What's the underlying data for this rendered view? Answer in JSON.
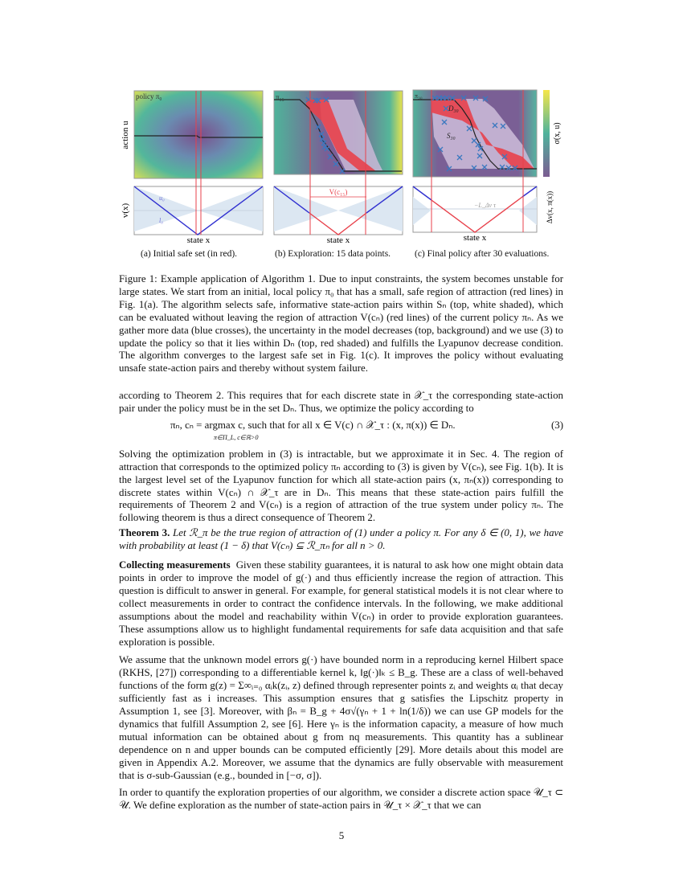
{
  "figure": {
    "panel_a": {
      "policy_label": "policy π₀",
      "value_upper_label": "u₀",
      "value_lower_label": "l₀",
      "xlabel": "state x",
      "caption": "(a) Initial safe set (in red)."
    },
    "panel_b": {
      "policy_label": "π₁₅",
      "roa_label": "V(c₁₅)",
      "xlabel": "state x",
      "caption": "(b) Exploration: 15 data points."
    },
    "panel_c": {
      "policy_label": "π₃₀",
      "d_label": "D₃₀",
      "s_label": "S₃₀",
      "threshold_label": "−L_Δv τ",
      "xlabel": "state x",
      "caption": "(c) Final policy after 30 evaluations."
    },
    "ylabel_top": "action u",
    "ylabel_bottom": "v(x)",
    "colorbar_label": "σ(x, u)",
    "right_label_bottom": "Δv(x, π(x))",
    "colors": {
      "safe_set": "#e8414b",
      "data_points": "#3a78c0",
      "lyapunov": "#3030d0",
      "policy": "#222222",
      "colormap_low": "#7b5c92",
      "colormap_high": "#f5e64a"
    }
  },
  "figure_caption": "Figure 1: Example application of Algorithm 1. Due to input constraints, the system becomes unstable for large states. We start from an initial, local policy π₀ that has a small, safe region of attraction (red lines) in Fig. 1(a). The algorithm selects safe, informative state-action pairs within Sₙ (top, white shaded), which can be evaluated without leaving the region of attraction V(cₙ) (red lines) of the current policy πₙ. As we gather more data (blue crosses), the uncertainty in the model decreases (top, background) and we use (3) to update the policy so that it lies within Dₙ (top, red shaded) and fulfills the Lyapunov decrease condition. The algorithm converges to the largest safe set in Fig. 1(c). It improves the policy without evaluating unsafe state-action pairs and thereby without system failure.",
  "paragraphs": {
    "p1": "according to Theorem 2. This requires that for each discrete state in 𝒳_τ the corresponding state-action pair under the policy must be in the set Dₙ. Thus, we optimize the policy according to",
    "equation": "πₙ, cₙ =   argmax   c,    such that for all x ∈ V(c) ∩ 𝒳_τ : (x, π(x)) ∈ Dₙ.",
    "equation_sub": "π∈Π_L, c∈ℝ>0",
    "equation_number": "(3)",
    "p2": "Solving the optimization problem in (3) is intractable, but we approximate it in Sec. 4. The region of attraction that corresponds to the optimized policy πₙ according to (3) is given by V(cₙ), see Fig. 1(b). It is the largest level set of the Lyapunov function for which all state-action pairs (x, πₙ(x)) corresponding to discrete states within V(cₙ) ∩ 𝒳_τ are in Dₙ. This means that these state-action pairs fulfill the requirements of Theorem 2 and V(cₙ) is a region of attraction of the true system under policy πₙ. The following theorem is thus a direct consequence of Theorem 2.",
    "theorem_label": "Theorem 3.",
    "theorem_text": "Let ℛ_π be the true region of attraction of (1) under a policy π. For any δ ∈ (0, 1), we have with probability at least (1 − δ) that V(cₙ) ⊆ ℛ_πₙ for all n > 0.",
    "collecting_heading": "Collecting measurements",
    "collecting_text": "Given these stability guarantees, it is natural to ask how one might obtain data points in order to improve the model of g(·) and thus efficiently increase the region of attraction. This question is difficult to answer in general. For example, for general statistical models it is not clear where to collect measurements in order to contract the confidence intervals. In the following, we make additional assumptions about the model and reachability within V(cₙ) in order to provide exploration guarantees. These assumptions allow us to highlight fundamental requirements for safe data acquisition and that safe exploration is possible.",
    "p4": "We assume that the unknown model errors g(·) have bounded norm in a reproducing kernel Hilbert space (RKHS, [27]) corresponding to a differentiable kernel k, ‖g(·)‖ₖ ≤ B_g. These are a class of well-behaved functions of the form g(z) = Σ∞ᵢ₌₀ αᵢk(zᵢ, z) defined through representer points zᵢ and weights αᵢ that decay sufficiently fast as i increases. This assumption ensures that g satisfies the Lipschitz property in Assumption 1, see [3]. Moreover, with βₙ = B_g + 4σ√(γₙ + 1 + ln(1/δ)) we can use GP models for the dynamics that fulfill Assumption 2, see [6]. Here γₙ is the information capacity, a measure of how much mutual information can be obtained about g from nq measurements. This quantity has a sublinear dependence on n and upper bounds can be computed efficiently [29]. More details about this model are given in Appendix A.2. Moreover, we assume that the dynamics are fully observable with measurement that is σ-sub-Gaussian (e.g., bounded in [−σ, σ]).",
    "p5": "In order to quantify the exploration properties of our algorithm, we consider a discrete action space 𝒰_τ ⊂ 𝒰. We define exploration as the number of state-action pairs in 𝒰_τ × 𝒳_τ that we can"
  },
  "page_number": "5"
}
